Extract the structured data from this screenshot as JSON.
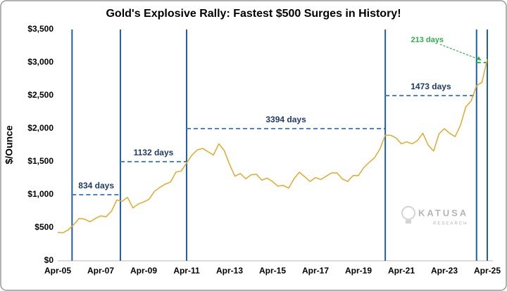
{
  "chart_data": {
    "type": "line",
    "title": "Gold's Explosive Rally: Fastest $500 Surges in History!",
    "y_label": "$/Ounce",
    "watermark": [
      "KATUSA",
      "RESEARCH"
    ],
    "xlim": [
      "2005-04",
      "2025-04"
    ],
    "xticks": [
      {
        "value": "2005-04",
        "label": "Apr-05"
      },
      {
        "value": "2007-04",
        "label": "Apr-07"
      },
      {
        "value": "2009-04",
        "label": "Apr-09"
      },
      {
        "value": "2011-04",
        "label": "Apr-11"
      },
      {
        "value": "2013-04",
        "label": "Apr-13"
      },
      {
        "value": "2015-04",
        "label": "Apr-15"
      },
      {
        "value": "2017-04",
        "label": "Apr-17"
      },
      {
        "value": "2019-04",
        "label": "Apr-19"
      },
      {
        "value": "2021-04",
        "label": "Apr-21"
      },
      {
        "value": "2023-04",
        "label": "Apr-23"
      },
      {
        "value": "2025-04",
        "label": "Apr-25"
      }
    ],
    "ylim": [
      0,
      3500
    ],
    "yticks": [
      {
        "value": 0,
        "label": "$0"
      },
      {
        "value": 500,
        "label": "$500"
      },
      {
        "value": 1000,
        "label": "$1,000"
      },
      {
        "value": 1500,
        "label": "$1,500"
      },
      {
        "value": 2000,
        "label": "$2,000"
      },
      {
        "value": 2500,
        "label": "$2,500"
      },
      {
        "value": 3000,
        "label": "$3,000"
      },
      {
        "value": 3500,
        "label": "$3,500"
      }
    ],
    "grid": false,
    "x": [
      "2005-04",
      "2005-07",
      "2005-10",
      "2006-01",
      "2006-04",
      "2006-07",
      "2006-10",
      "2007-01",
      "2007-04",
      "2007-07",
      "2007-10",
      "2008-01",
      "2008-04",
      "2008-07",
      "2008-10",
      "2009-01",
      "2009-04",
      "2009-07",
      "2009-10",
      "2010-01",
      "2010-04",
      "2010-07",
      "2010-10",
      "2011-01",
      "2011-04",
      "2011-07",
      "2011-10",
      "2012-01",
      "2012-04",
      "2012-07",
      "2012-10",
      "2013-01",
      "2013-04",
      "2013-07",
      "2013-10",
      "2014-01",
      "2014-04",
      "2014-07",
      "2014-10",
      "2015-01",
      "2015-04",
      "2015-07",
      "2015-10",
      "2016-01",
      "2016-04",
      "2016-07",
      "2016-10",
      "2017-01",
      "2017-04",
      "2017-07",
      "2017-10",
      "2018-01",
      "2018-04",
      "2018-07",
      "2018-10",
      "2019-01",
      "2019-04",
      "2019-07",
      "2019-10",
      "2020-01",
      "2020-04",
      "2020-07",
      "2020-10",
      "2021-01",
      "2021-04",
      "2021-07",
      "2021-10",
      "2022-01",
      "2022-04",
      "2022-07",
      "2022-10",
      "2023-01",
      "2023-04",
      "2023-07",
      "2023-10",
      "2024-01",
      "2024-04",
      "2024-07",
      "2024-10",
      "2025-01",
      "2025-04"
    ],
    "series": [
      {
        "name": "Gold",
        "color": "#e3a92a",
        "values": [
          430,
          425,
          470,
          550,
          640,
          630,
          590,
          640,
          680,
          665,
          750,
          920,
          900,
          960,
          800,
          860,
          890,
          930,
          1050,
          1110,
          1160,
          1190,
          1340,
          1360,
          1480,
          1600,
          1680,
          1700,
          1650,
          1600,
          1770,
          1670,
          1460,
          1280,
          1320,
          1240,
          1300,
          1310,
          1220,
          1250,
          1200,
          1130,
          1140,
          1100,
          1240,
          1340,
          1270,
          1200,
          1260,
          1230,
          1280,
          1330,
          1330,
          1240,
          1200,
          1290,
          1290,
          1410,
          1490,
          1560,
          1690,
          1900,
          1900,
          1860,
          1770,
          1800,
          1770,
          1820,
          1930,
          1750,
          1660,
          1920,
          2000,
          1930,
          1880,
          2050,
          2330,
          2420,
          2650,
          2700,
          3050
        ]
      }
    ],
    "surges": [
      {
        "start": "2005-12",
        "end": "2008-03",
        "level": 1000,
        "label": "834 days",
        "color": "#1f3a6b"
      },
      {
        "start": "2008-03",
        "end": "2011-04",
        "level": 1500,
        "label": "1132 days",
        "color": "#1f3a6b"
      },
      {
        "start": "2011-04",
        "end": "2020-07",
        "level": 2000,
        "label": "3394 days",
        "color": "#1f3a6b"
      },
      {
        "start": "2020-07",
        "end": "2024-10",
        "level": 2500,
        "label": "1473 days",
        "color": "#1f3a6b"
      },
      {
        "start": "2024-10",
        "end": "2025-04",
        "level": 3000,
        "label": "213 days",
        "color": "#2db34a"
      }
    ]
  }
}
